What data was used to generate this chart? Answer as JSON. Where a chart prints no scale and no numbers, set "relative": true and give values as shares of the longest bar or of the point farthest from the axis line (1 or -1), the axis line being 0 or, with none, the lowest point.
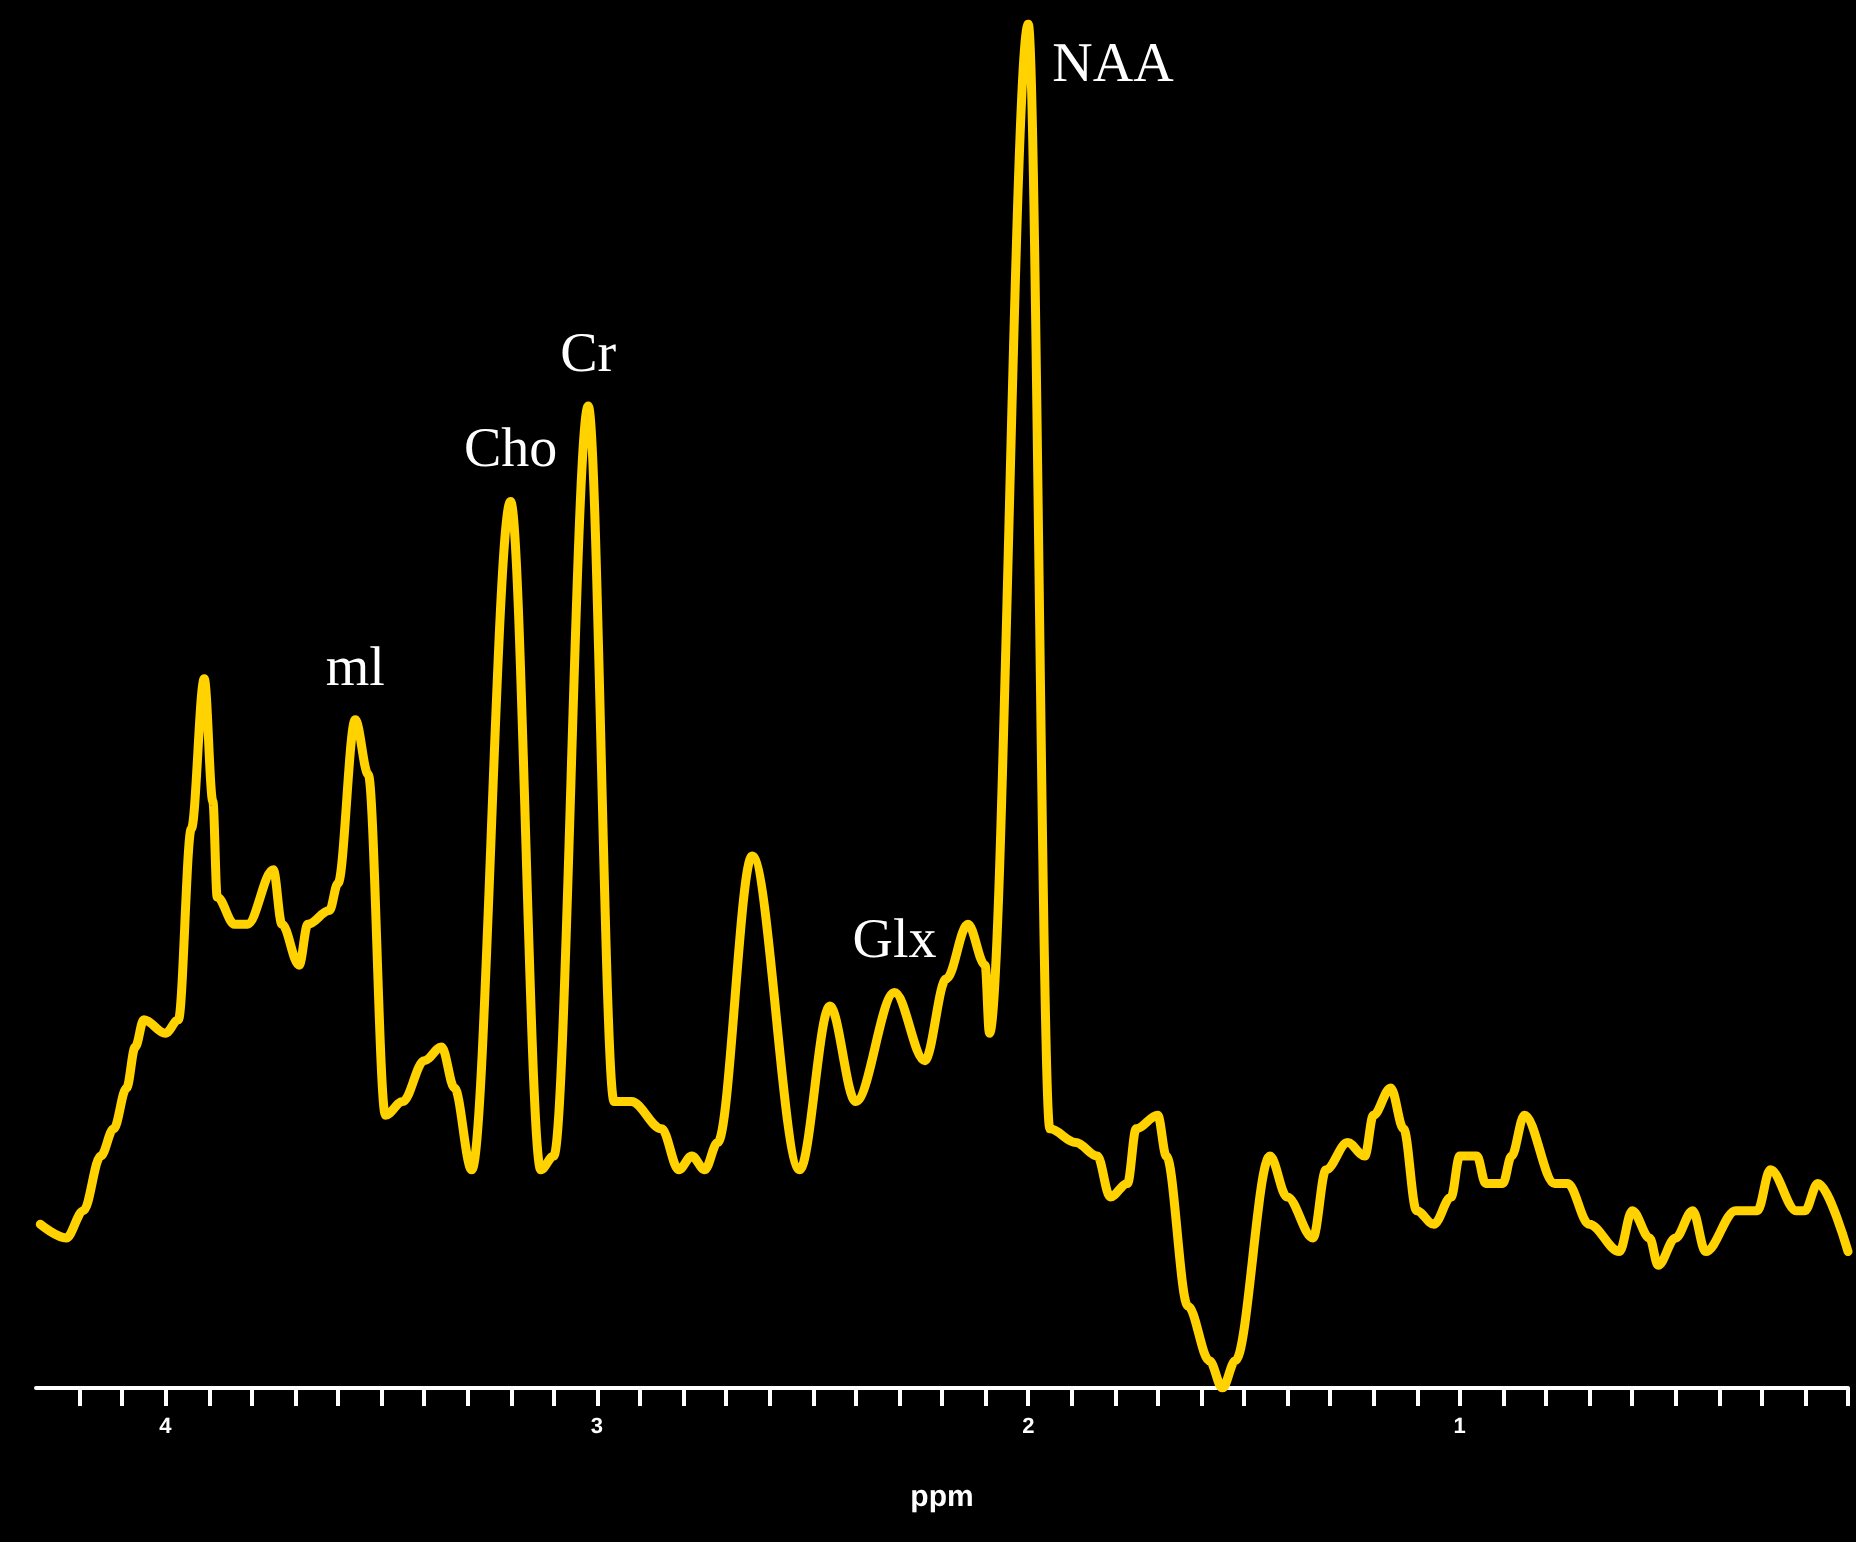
{
  "chart_data": {
    "type": "line",
    "relative": true,
    "xlabel": "ppm",
    "xlim": [
      4.3,
      0.1
    ],
    "xticks": [
      {
        "value": 4.2,
        "label": null
      },
      {
        "value": 4.1,
        "label": null
      },
      4,
      {
        "value": 3.9,
        "label": null
      },
      {
        "value": 3.8,
        "label": null
      },
      {
        "value": 3.7,
        "label": null
      },
      {
        "value": 3.6,
        "label": null
      },
      {
        "value": 3.5,
        "label": null
      },
      {
        "value": 3.4,
        "label": null
      },
      {
        "value": 3.3,
        "label": null
      },
      {
        "value": 3.2,
        "label": null
      },
      {
        "value": 3.1,
        "label": null
      },
      3,
      {
        "value": 2.9,
        "label": null
      },
      {
        "value": 2.8,
        "label": null
      },
      {
        "value": 2.7,
        "label": null
      },
      {
        "value": 2.6,
        "label": null
      },
      {
        "value": 2.5,
        "label": null
      },
      {
        "value": 2.4,
        "label": null
      },
      {
        "value": 2.3,
        "label": null
      },
      {
        "value": 2.2,
        "label": null
      },
      {
        "value": 2.1,
        "label": null
      },
      2,
      {
        "value": 1.9,
        "label": null
      },
      {
        "value": 1.8,
        "label": null
      },
      {
        "value": 1.7,
        "label": null
      },
      {
        "value": 1.6,
        "label": null
      },
      {
        "value": 1.5,
        "label": null
      },
      {
        "value": 1.4,
        "label": null
      },
      {
        "value": 1.3,
        "label": null
      },
      {
        "value": 1.2,
        "label": null
      },
      {
        "value": 1.1,
        "label": null
      },
      1,
      {
        "value": 0.9,
        "label": null
      },
      {
        "value": 0.8,
        "label": null
      },
      {
        "value": 0.7,
        "label": null
      },
      {
        "value": 0.6,
        "label": null
      },
      {
        "value": 0.5,
        "label": null
      },
      {
        "value": 0.4,
        "label": null
      },
      {
        "value": 0.3,
        "label": null
      },
      {
        "value": 0.2,
        "label": null
      },
      {
        "value": 0.1,
        "label": null
      }
    ],
    "tick_labels": "x",
    "grid": false,
    "marker": "none",
    "line_style": "solid",
    "series": [
      {
        "color": "#ffd200",
        "x": [
          4.29,
          4.23,
          4.19,
          4.15,
          4.12,
          4.09,
          4.07,
          4.05,
          4.0,
          3.97,
          3.94,
          3.91,
          3.89,
          3.88,
          3.84,
          3.81,
          3.75,
          3.73,
          3.69,
          3.67,
          3.62,
          3.6,
          3.56,
          3.53,
          3.49,
          3.45,
          3.4,
          3.36,
          3.33,
          3.29,
          3.2,
          3.13,
          3.1,
          3.02,
          2.96,
          2.92,
          2.85,
          2.81,
          2.78,
          2.75,
          2.72,
          2.64,
          2.53,
          2.46,
          2.4,
          2.31,
          2.24,
          2.19,
          2.14,
          2.1,
          2.09,
          2.0,
          1.95,
          1.89,
          1.84,
          1.81,
          1.77,
          1.75,
          1.7,
          1.68,
          1.63,
          1.58,
          1.55,
          1.52,
          1.44,
          1.4,
          1.34,
          1.31,
          1.26,
          1.22,
          1.2,
          1.16,
          1.13,
          1.1,
          1.06,
          1.02,
          1.0,
          0.96,
          0.94,
          0.9,
          0.88,
          0.85,
          0.78,
          0.75,
          0.7,
          0.63,
          0.6,
          0.56,
          0.54,
          0.5,
          0.46,
          0.43,
          0.36,
          0.31,
          0.28,
          0.22,
          0.2,
          0.17,
          0.1
        ],
        "values": [
          0.12,
          0.11,
          0.13,
          0.17,
          0.19,
          0.22,
          0.25,
          0.27,
          0.26,
          0.27,
          0.41,
          0.52,
          0.43,
          0.36,
          0.34,
          0.34,
          0.38,
          0.34,
          0.31,
          0.34,
          0.35,
          0.37,
          0.49,
          0.45,
          0.2,
          0.21,
          0.24,
          0.25,
          0.22,
          0.16,
          0.65,
          0.16,
          0.17,
          0.72,
          0.21,
          0.21,
          0.19,
          0.16,
          0.17,
          0.16,
          0.18,
          0.39,
          0.16,
          0.28,
          0.21,
          0.29,
          0.24,
          0.3,
          0.34,
          0.31,
          0.26,
          1,
          0.19,
          0.18,
          0.17,
          0.14,
          0.15,
          0.19,
          0.2,
          0.17,
          0.06,
          0.02,
          0.0,
          0.02,
          0.17,
          0.14,
          0.11,
          0.16,
          0.18,
          0.17,
          0.2,
          0.22,
          0.19,
          0.13,
          0.12,
          0.14,
          0.17,
          0.17,
          0.15,
          0.15,
          0.17,
          0.2,
          0.15,
          0.15,
          0.12,
          0.1,
          0.13,
          0.11,
          0.09,
          0.11,
          0.13,
          0.1,
          0.13,
          0.13,
          0.16,
          0.13,
          0.13,
          0.15,
          0.1
        ]
      }
    ],
    "annotations": [
      {
        "text": "ml",
        "x": 3.56,
        "y": 0.49
      },
      {
        "text": "Cho",
        "x": 3.2,
        "y": 0.65
      },
      {
        "text": "Cr",
        "x": 3.02,
        "y": 0.72
      },
      {
        "text": "Glx",
        "x": 2.31,
        "y": 0.29
      },
      {
        "text": "NAA",
        "x": 2.0,
        "y": 1
      }
    ]
  }
}
